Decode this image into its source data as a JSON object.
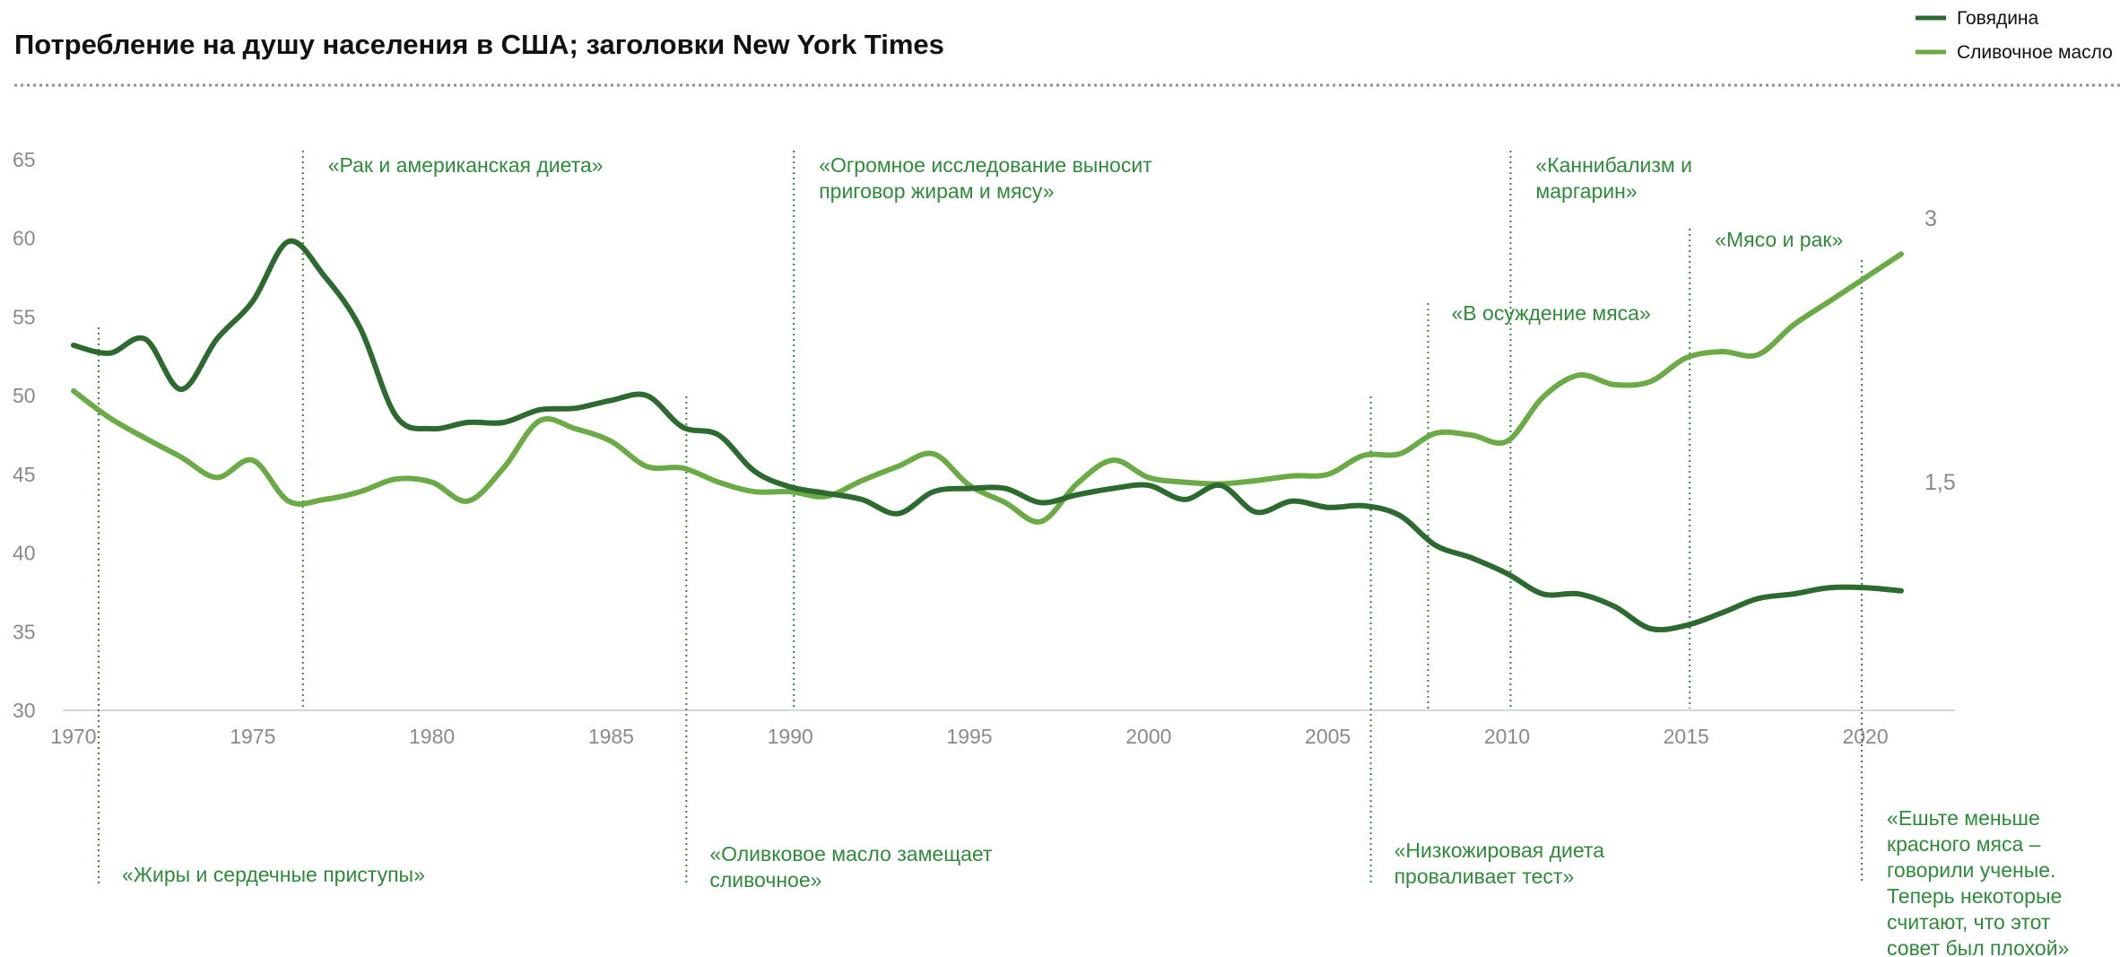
{
  "chart_data": {
    "type": "line",
    "title": "Потребление на душу населения в США; заголовки New York Times",
    "xlim": [
      1970,
      2021
    ],
    "ylim": [
      30,
      65
    ],
    "yticks": [
      "30",
      "35",
      "40",
      "45",
      "50",
      "55",
      "60",
      "65"
    ],
    "xticks": [
      "1970",
      "1975",
      "1980",
      "1985",
      "1990",
      "1995",
      "2000",
      "2005",
      "2010",
      "2015",
      "2020"
    ],
    "right_axis_labels": [
      {
        "value": 3,
        "text": "3"
      },
      {
        "value": 1.5,
        "text": "1,5"
      }
    ],
    "colors": {
      "beef": "#2d6a2f",
      "butter": "#6aab45",
      "annotation": "#2e8b3a",
      "axis_text": "#8a8a8a"
    },
    "legend": {
      "position": "top-right"
    },
    "series": [
      {
        "name": "Говядина",
        "x": [
          1970,
          1971,
          1972,
          1973,
          1974,
          1975,
          1976,
          1977,
          1978,
          1979,
          1980,
          1981,
          1982,
          1983,
          1984,
          1985,
          1986,
          1987,
          1988,
          1989,
          1990,
          1991,
          1992,
          1993,
          1994,
          1995,
          1996,
          1997,
          1998,
          1999,
          2000,
          2001,
          2002,
          2003,
          2004,
          2005,
          2006,
          2007,
          2008,
          2009,
          2010,
          2011,
          2012,
          2013,
          2014,
          2015,
          2016,
          2017,
          2018,
          2019,
          2020,
          2021
        ],
        "values": [
          53.2,
          52.7,
          53.6,
          50.4,
          53.6,
          56.0,
          59.8,
          57.6,
          54.3,
          48.7,
          47.9,
          48.3,
          48.3,
          49.1,
          49.2,
          49.7,
          50.0,
          48.0,
          47.5,
          45.2,
          44.2,
          43.8,
          43.4,
          42.5,
          43.9,
          44.1,
          44.1,
          43.2,
          43.7,
          44.1,
          44.3,
          43.4,
          44.3,
          42.6,
          43.3,
          42.9,
          43.0,
          42.4,
          40.5,
          39.7,
          38.7,
          37.4,
          37.4,
          36.6,
          35.2,
          35.4,
          36.2,
          37.1,
          37.4,
          37.8,
          37.8,
          37.6
        ]
      },
      {
        "name": "Сливочное масло",
        "x": [
          1970,
          1971,
          1972,
          1973,
          1974,
          1975,
          1976,
          1977,
          1978,
          1979,
          1980,
          1981,
          1982,
          1983,
          1984,
          1985,
          1986,
          1987,
          1988,
          1989,
          1990,
          1991,
          1992,
          1993,
          1994,
          1995,
          1996,
          1997,
          1998,
          1999,
          2000,
          2001,
          2002,
          2003,
          2004,
          2005,
          2006,
          2007,
          2008,
          2009,
          2010,
          2011,
          2012,
          2013,
          2014,
          2015,
          2016,
          2017,
          2018,
          2019,
          2020,
          2021
        ],
        "values": [
          50.3,
          48.6,
          47.3,
          46.1,
          44.8,
          45.9,
          43.3,
          43.4,
          43.9,
          44.7,
          44.5,
          43.3,
          45.4,
          48.4,
          47.9,
          47.1,
          45.5,
          45.4,
          44.5,
          43.9,
          43.9,
          43.6,
          44.6,
          45.5,
          46.3,
          44.3,
          43.2,
          42.0,
          44.4,
          45.9,
          44.8,
          44.5,
          44.4,
          44.6,
          44.9,
          45.0,
          46.2,
          46.3,
          47.6,
          47.5,
          47.1,
          49.9,
          51.3,
          50.7,
          50.9,
          52.4,
          52.8,
          52.6,
          54.5,
          56.0,
          57.5,
          59.0
        ]
      }
    ],
    "annotations": [
      {
        "year": 1970.7,
        "lines": [
          "«Жиры и сердечные приступы»"
        ],
        "position": "bottom"
      },
      {
        "year": 1976.4,
        "lines": [
          "«Рак и американская диета»"
        ],
        "position": "top"
      },
      {
        "year": 1987.1,
        "lines": [
          "«Оливковое масло замещает",
          "сливочное»"
        ],
        "position": "bottom"
      },
      {
        "year": 1990.1,
        "lines": [
          "«Огромное исследование выносит",
          "приговор жирам и мясу»"
        ],
        "position": "top"
      },
      {
        "year": 2006.2,
        "lines": [
          "«Низкожировая диета",
          "проваливает тест»"
        ],
        "position": "bottom"
      },
      {
        "year": 2007.8,
        "lines": [
          "«В осуждение мяса»"
        ],
        "position": "mid"
      },
      {
        "year": 2010.1,
        "lines": [
          "«Каннибализм и",
          "маргарин»"
        ],
        "position": "top"
      },
      {
        "year": 2015.1,
        "lines": [
          "«Мясо и рак»"
        ],
        "position": "upper"
      },
      {
        "year": 2019.9,
        "lines": [
          "«Ешьте  меньше",
          "красного мяса –",
          "говорили ученые.",
          "Теперь некоторые",
          "считают, что этот",
          "совет был плохой»"
        ],
        "position": "bottom-right"
      }
    ]
  }
}
